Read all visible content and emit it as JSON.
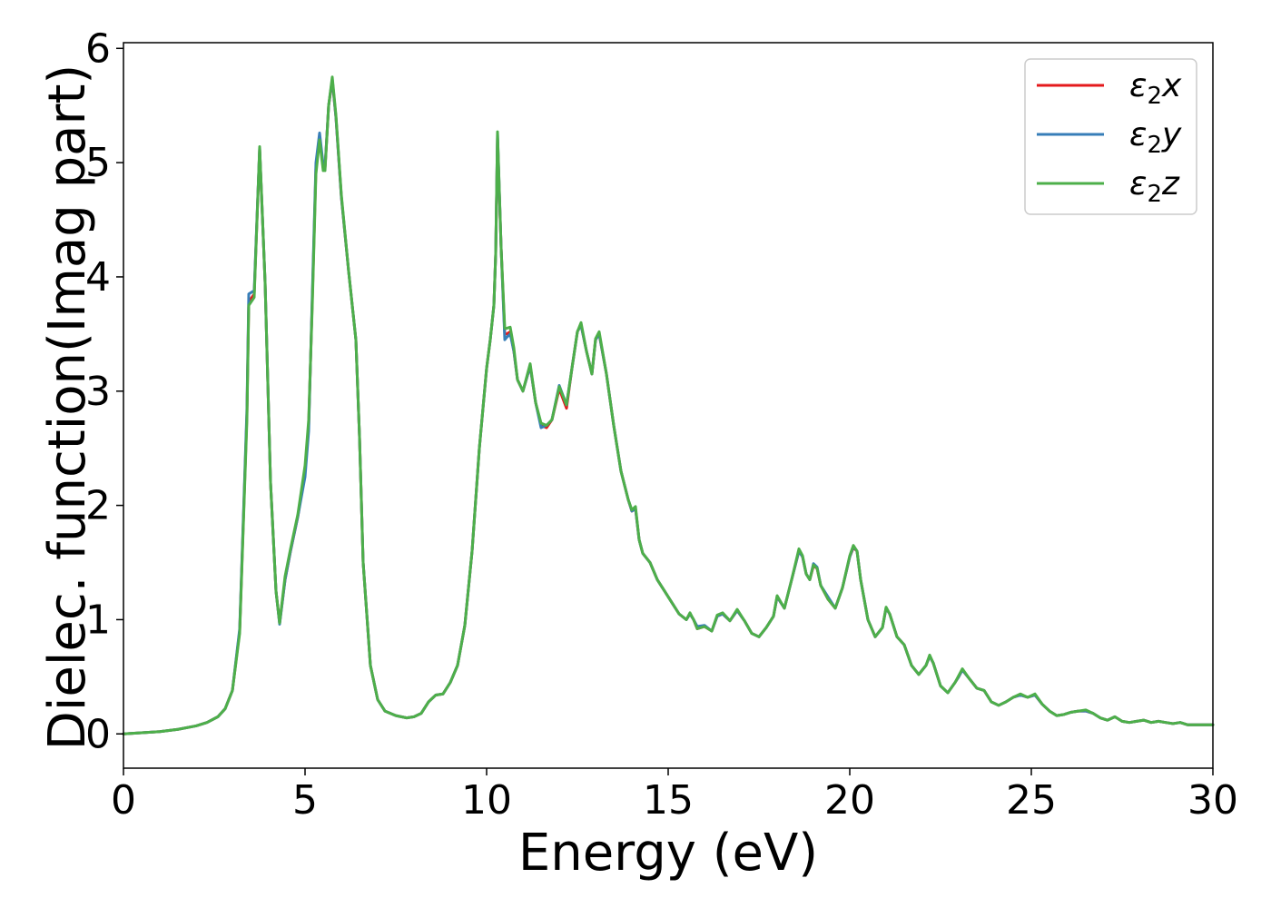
{
  "chart_data": {
    "type": "line",
    "title": "",
    "xlabel": "Energy (eV)",
    "ylabel": "Dielec. function(Imag part)",
    "xlim": [
      0,
      30
    ],
    "ylim": [
      -0.3,
      6.05
    ],
    "xticks": [
      0,
      5,
      10,
      15,
      20,
      25,
      30
    ],
    "yticks": [
      0,
      1,
      2,
      3,
      4,
      5,
      6
    ],
    "grid": false,
    "legend_position": "top-right",
    "series": [
      {
        "name": "ε2x",
        "legend_base": "ε",
        "legend_sub": "2",
        "legend_tail": "x",
        "color": "#e41a1c",
        "x": [
          0.0,
          0.5,
          1.0,
          1.5,
          2.0,
          2.3,
          2.6,
          2.8,
          3.0,
          3.2,
          3.4,
          3.45,
          3.6,
          3.75,
          3.9,
          4.05,
          4.2,
          4.3,
          4.45,
          4.6,
          4.8,
          5.0,
          5.1,
          5.2,
          5.3,
          5.4,
          5.5,
          5.55,
          5.65,
          5.75,
          5.85,
          6.0,
          6.2,
          6.4,
          6.5,
          6.6,
          6.8,
          7.0,
          7.2,
          7.5,
          7.8,
          8.0,
          8.2,
          8.4,
          8.6,
          8.8,
          9.0,
          9.2,
          9.4,
          9.6,
          9.8,
          10.0,
          10.1,
          10.2,
          10.25,
          10.3,
          10.4,
          10.5,
          10.55,
          10.65,
          10.75,
          10.85,
          11.0,
          11.2,
          11.35,
          11.5,
          11.65,
          11.8,
          12.0,
          12.2,
          12.35,
          12.5,
          12.6,
          12.75,
          12.9,
          13.0,
          13.1,
          13.3,
          13.5,
          13.7,
          13.9,
          14.0,
          14.1,
          14.2,
          14.3,
          14.5,
          14.7,
          14.9,
          15.1,
          15.3,
          15.5,
          15.6,
          15.7,
          15.8,
          16.0,
          16.2,
          16.35,
          16.5,
          16.7,
          16.9,
          17.1,
          17.3,
          17.5,
          17.7,
          17.9,
          18.0,
          18.2,
          18.4,
          18.6,
          18.7,
          18.8,
          18.9,
          19.0,
          19.1,
          19.2,
          19.4,
          19.6,
          19.8,
          20.0,
          20.1,
          20.2,
          20.3,
          20.5,
          20.7,
          20.9,
          21.0,
          21.1,
          21.3,
          21.5,
          21.7,
          21.9,
          22.1,
          22.2,
          22.3,
          22.5,
          22.7,
          22.9,
          23.0,
          23.1,
          23.3,
          23.5,
          23.7,
          23.9,
          24.1,
          24.3,
          24.5,
          24.7,
          24.9,
          25.1,
          25.3,
          25.5,
          25.7,
          25.9,
          26.1,
          26.3,
          26.5,
          26.7,
          26.9,
          27.1,
          27.3,
          27.5,
          27.7,
          27.9,
          28.1,
          28.3,
          28.5,
          28.7,
          28.9,
          29.1,
          29.3,
          29.5,
          29.7,
          30.0
        ],
        "y": [
          0.0,
          0.01,
          0.02,
          0.04,
          0.07,
          0.1,
          0.15,
          0.22,
          0.38,
          0.9,
          2.8,
          3.78,
          3.85,
          5.12,
          3.95,
          2.2,
          1.25,
          0.97,
          1.35,
          1.6,
          1.9,
          2.3,
          2.7,
          3.8,
          4.95,
          5.22,
          4.95,
          4.95,
          5.5,
          5.72,
          5.4,
          4.7,
          4.05,
          3.45,
          2.6,
          1.5,
          0.6,
          0.3,
          0.2,
          0.16,
          0.14,
          0.15,
          0.18,
          0.28,
          0.34,
          0.35,
          0.45,
          0.6,
          0.95,
          1.6,
          2.5,
          3.2,
          3.45,
          3.75,
          4.2,
          5.22,
          4.25,
          3.5,
          3.5,
          3.52,
          3.35,
          3.1,
          3.0,
          3.22,
          2.9,
          2.7,
          2.68,
          2.75,
          3.02,
          2.85,
          3.2,
          3.52,
          3.58,
          3.35,
          3.15,
          3.45,
          3.5,
          3.15,
          2.7,
          2.3,
          2.05,
          1.95,
          1.97,
          1.7,
          1.58,
          1.5,
          1.35,
          1.25,
          1.15,
          1.05,
          1.0,
          1.05,
          1.0,
          0.92,
          0.94,
          0.9,
          1.03,
          1.05,
          0.99,
          1.08,
          0.99,
          0.88,
          0.85,
          0.93,
          1.03,
          1.2,
          1.1,
          1.35,
          1.6,
          1.55,
          1.4,
          1.35,
          1.47,
          1.45,
          1.3,
          1.18,
          1.1,
          1.28,
          1.55,
          1.63,
          1.6,
          1.35,
          1.0,
          0.85,
          0.93,
          1.1,
          1.05,
          0.85,
          0.78,
          0.6,
          0.52,
          0.6,
          0.68,
          0.62,
          0.42,
          0.36,
          0.45,
          0.5,
          0.56,
          0.48,
          0.4,
          0.38,
          0.28,
          0.25,
          0.28,
          0.32,
          0.34,
          0.32,
          0.34,
          0.26,
          0.2,
          0.16,
          0.17,
          0.19,
          0.2,
          0.2,
          0.18,
          0.14,
          0.12,
          0.15,
          0.11,
          0.1,
          0.11,
          0.12,
          0.1,
          0.11,
          0.1,
          0.09,
          0.1,
          0.08,
          0.08,
          0.08,
          0.08
        ]
      },
      {
        "name": "ε2y",
        "legend_base": "ε",
        "legend_sub": "2",
        "legend_tail": "y",
        "color": "#377eb8",
        "x": [
          0.0,
          0.5,
          1.0,
          1.5,
          2.0,
          2.3,
          2.6,
          2.8,
          3.0,
          3.2,
          3.4,
          3.45,
          3.6,
          3.75,
          3.9,
          4.05,
          4.2,
          4.3,
          4.45,
          4.6,
          4.8,
          5.0,
          5.1,
          5.2,
          5.3,
          5.4,
          5.5,
          5.55,
          5.65,
          5.75,
          5.85,
          6.0,
          6.2,
          6.4,
          6.5,
          6.6,
          6.8,
          7.0,
          7.2,
          7.5,
          7.8,
          8.0,
          8.2,
          8.4,
          8.6,
          8.8,
          9.0,
          9.2,
          9.4,
          9.6,
          9.8,
          10.0,
          10.1,
          10.2,
          10.25,
          10.3,
          10.4,
          10.5,
          10.55,
          10.65,
          10.75,
          10.85,
          11.0,
          11.2,
          11.35,
          11.5,
          11.65,
          11.8,
          12.0,
          12.2,
          12.35,
          12.5,
          12.6,
          12.75,
          12.9,
          13.0,
          13.1,
          13.3,
          13.5,
          13.7,
          13.9,
          14.0,
          14.1,
          14.2,
          14.3,
          14.5,
          14.7,
          14.9,
          15.1,
          15.3,
          15.5,
          15.6,
          15.7,
          15.8,
          16.0,
          16.2,
          16.35,
          16.5,
          16.7,
          16.9,
          17.1,
          17.3,
          17.5,
          17.7,
          17.9,
          18.0,
          18.2,
          18.4,
          18.6,
          18.7,
          18.8,
          18.9,
          19.0,
          19.1,
          19.2,
          19.4,
          19.6,
          19.8,
          20.0,
          20.1,
          20.2,
          20.3,
          20.5,
          20.7,
          20.9,
          21.0,
          21.1,
          21.3,
          21.5,
          21.7,
          21.9,
          22.1,
          22.2,
          22.3,
          22.5,
          22.7,
          22.9,
          23.0,
          23.1,
          23.3,
          23.5,
          23.7,
          23.9,
          24.1,
          24.3,
          24.5,
          24.7,
          24.9,
          25.1,
          25.3,
          25.5,
          25.7,
          25.9,
          26.1,
          26.3,
          26.5,
          26.7,
          26.9,
          27.1,
          27.3,
          27.5,
          27.7,
          27.9,
          28.1,
          28.3,
          28.5,
          28.7,
          28.9,
          29.1,
          29.3,
          29.5,
          29.7,
          30.0
        ],
        "y": [
          0.0,
          0.01,
          0.02,
          0.04,
          0.07,
          0.1,
          0.15,
          0.22,
          0.38,
          0.92,
          2.85,
          3.85,
          3.88,
          5.13,
          3.95,
          2.2,
          1.25,
          0.96,
          1.35,
          1.6,
          1.9,
          2.25,
          2.65,
          3.85,
          5.0,
          5.26,
          4.98,
          4.96,
          5.5,
          5.73,
          5.4,
          4.7,
          4.05,
          3.45,
          2.6,
          1.5,
          0.6,
          0.3,
          0.2,
          0.16,
          0.14,
          0.15,
          0.18,
          0.28,
          0.34,
          0.35,
          0.45,
          0.6,
          0.95,
          1.6,
          2.5,
          3.2,
          3.45,
          3.75,
          4.2,
          5.26,
          4.25,
          3.45,
          3.47,
          3.5,
          3.35,
          3.1,
          3.0,
          3.22,
          2.9,
          2.68,
          2.7,
          2.75,
          3.05,
          2.88,
          3.2,
          3.52,
          3.58,
          3.35,
          3.15,
          3.45,
          3.5,
          3.15,
          2.7,
          2.3,
          2.05,
          1.95,
          1.97,
          1.7,
          1.58,
          1.5,
          1.35,
          1.25,
          1.15,
          1.05,
          1.0,
          1.05,
          1.0,
          0.94,
          0.95,
          0.9,
          1.03,
          1.05,
          0.99,
          1.08,
          0.99,
          0.88,
          0.85,
          0.93,
          1.03,
          1.2,
          1.1,
          1.35,
          1.6,
          1.55,
          1.4,
          1.35,
          1.49,
          1.46,
          1.3,
          1.2,
          1.1,
          1.28,
          1.55,
          1.64,
          1.6,
          1.35,
          1.0,
          0.85,
          0.93,
          1.1,
          1.05,
          0.85,
          0.78,
          0.6,
          0.52,
          0.6,
          0.68,
          0.62,
          0.42,
          0.36,
          0.45,
          0.5,
          0.56,
          0.48,
          0.4,
          0.38,
          0.28,
          0.25,
          0.28,
          0.32,
          0.34,
          0.32,
          0.34,
          0.26,
          0.2,
          0.16,
          0.17,
          0.19,
          0.2,
          0.2,
          0.18,
          0.14,
          0.12,
          0.15,
          0.11,
          0.1,
          0.11,
          0.12,
          0.1,
          0.11,
          0.1,
          0.09,
          0.1,
          0.08,
          0.08,
          0.08,
          0.08
        ]
      },
      {
        "name": "ε2z",
        "legend_base": "ε",
        "legend_sub": "2",
        "legend_tail": "z",
        "color": "#4daf4a",
        "x": [
          0.0,
          0.5,
          1.0,
          1.5,
          2.0,
          2.3,
          2.6,
          2.8,
          3.0,
          3.2,
          3.4,
          3.45,
          3.6,
          3.75,
          3.9,
          4.05,
          4.2,
          4.3,
          4.45,
          4.6,
          4.8,
          5.0,
          5.1,
          5.2,
          5.3,
          5.4,
          5.5,
          5.55,
          5.65,
          5.75,
          5.85,
          6.0,
          6.2,
          6.4,
          6.5,
          6.6,
          6.8,
          7.0,
          7.2,
          7.5,
          7.8,
          8.0,
          8.2,
          8.4,
          8.6,
          8.8,
          9.0,
          9.2,
          9.4,
          9.6,
          9.8,
          10.0,
          10.1,
          10.2,
          10.25,
          10.3,
          10.4,
          10.5,
          10.55,
          10.65,
          10.75,
          10.85,
          11.0,
          11.2,
          11.35,
          11.5,
          11.65,
          11.8,
          12.0,
          12.2,
          12.35,
          12.5,
          12.6,
          12.75,
          12.9,
          13.0,
          13.1,
          13.3,
          13.5,
          13.7,
          13.9,
          14.0,
          14.1,
          14.2,
          14.3,
          14.5,
          14.7,
          14.9,
          15.1,
          15.3,
          15.5,
          15.6,
          15.7,
          15.8,
          16.0,
          16.2,
          16.35,
          16.5,
          16.7,
          16.9,
          17.1,
          17.3,
          17.5,
          17.7,
          17.9,
          18.0,
          18.2,
          18.4,
          18.6,
          18.7,
          18.8,
          18.9,
          19.0,
          19.1,
          19.2,
          19.4,
          19.6,
          19.8,
          20.0,
          20.1,
          20.2,
          20.3,
          20.5,
          20.7,
          20.9,
          21.0,
          21.1,
          21.3,
          21.5,
          21.7,
          21.9,
          22.1,
          22.2,
          22.3,
          22.5,
          22.7,
          22.9,
          23.0,
          23.1,
          23.3,
          23.5,
          23.7,
          23.9,
          24.1,
          24.3,
          24.5,
          24.7,
          24.9,
          25.1,
          25.3,
          25.5,
          25.7,
          25.9,
          26.1,
          26.3,
          26.5,
          26.7,
          26.9,
          27.1,
          27.3,
          27.5,
          27.7,
          27.9,
          28.1,
          28.3,
          28.5,
          28.7,
          28.9,
          29.1,
          29.3,
          29.5,
          29.7,
          30.0
        ],
        "y": [
          0.0,
          0.01,
          0.02,
          0.04,
          0.07,
          0.1,
          0.15,
          0.22,
          0.38,
          0.88,
          2.75,
          3.75,
          3.82,
          5.14,
          3.95,
          2.2,
          1.25,
          0.97,
          1.38,
          1.62,
          1.92,
          2.35,
          2.75,
          3.75,
          4.9,
          5.2,
          4.93,
          4.93,
          5.5,
          5.75,
          5.42,
          4.72,
          4.05,
          3.45,
          2.6,
          1.5,
          0.6,
          0.3,
          0.2,
          0.16,
          0.14,
          0.15,
          0.18,
          0.28,
          0.34,
          0.35,
          0.45,
          0.6,
          0.95,
          1.6,
          2.5,
          3.2,
          3.45,
          3.75,
          4.2,
          5.27,
          4.25,
          3.55,
          3.55,
          3.56,
          3.38,
          3.1,
          3.0,
          3.24,
          2.9,
          2.72,
          2.7,
          2.75,
          3.04,
          2.88,
          3.2,
          3.52,
          3.6,
          3.35,
          3.15,
          3.46,
          3.52,
          3.15,
          2.7,
          2.3,
          2.05,
          1.96,
          1.99,
          1.7,
          1.58,
          1.5,
          1.35,
          1.25,
          1.15,
          1.05,
          1.0,
          1.06,
          1.0,
          0.92,
          0.94,
          0.9,
          1.04,
          1.06,
          0.99,
          1.09,
          0.99,
          0.88,
          0.85,
          0.93,
          1.03,
          1.21,
          1.1,
          1.35,
          1.62,
          1.56,
          1.4,
          1.35,
          1.48,
          1.45,
          1.3,
          1.18,
          1.1,
          1.28,
          1.56,
          1.65,
          1.6,
          1.35,
          1.0,
          0.85,
          0.93,
          1.11,
          1.05,
          0.85,
          0.78,
          0.6,
          0.52,
          0.6,
          0.69,
          0.62,
          0.42,
          0.36,
          0.45,
          0.51,
          0.57,
          0.48,
          0.4,
          0.38,
          0.28,
          0.25,
          0.28,
          0.32,
          0.35,
          0.32,
          0.35,
          0.26,
          0.2,
          0.16,
          0.17,
          0.19,
          0.2,
          0.21,
          0.18,
          0.14,
          0.12,
          0.15,
          0.11,
          0.1,
          0.11,
          0.12,
          0.1,
          0.11,
          0.1,
          0.09,
          0.1,
          0.08,
          0.08,
          0.08,
          0.08
        ]
      }
    ]
  }
}
